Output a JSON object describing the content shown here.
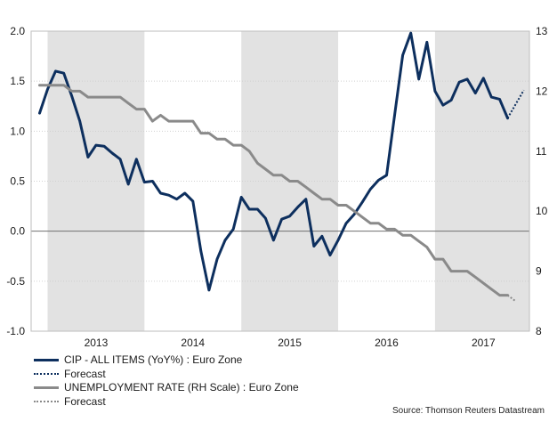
{
  "chart_data": {
    "type": "line",
    "x_labels": [
      "2013",
      "2014",
      "2015",
      "2016",
      "2017"
    ],
    "left_axis": {
      "ylim": [
        -1.0,
        2.0
      ],
      "ticks": [
        "-1.0",
        "-0.5",
        "0.0",
        "0.5",
        "1.0",
        "1.5",
        "2.0"
      ]
    },
    "right_axis": {
      "ylim": [
        8,
        13
      ],
      "ticks": [
        "8",
        "9",
        "10",
        "11",
        "12",
        "13"
      ]
    },
    "series": [
      {
        "name": "CIP - ALL ITEMS (YoY%) : Euro Zone",
        "axis": "left",
        "color": "#0d2f5e",
        "t": [
          2012.917,
          2013.0,
          2013.083,
          2013.167,
          2013.25,
          2013.333,
          2013.417,
          2013.5,
          2013.583,
          2013.667,
          2013.75,
          2013.833,
          2013.917,
          2014.0,
          2014.083,
          2014.167,
          2014.25,
          2014.333,
          2014.417,
          2014.5,
          2014.583,
          2014.667,
          2014.75,
          2014.833,
          2014.917,
          2015.0,
          2015.083,
          2015.167,
          2015.25,
          2015.333,
          2015.417,
          2015.5,
          2015.583,
          2015.667,
          2015.75,
          2015.833,
          2015.917,
          2016.0,
          2016.083,
          2016.167,
          2016.25,
          2016.333,
          2016.417,
          2016.5,
          2016.583,
          2016.667,
          2016.75,
          2016.833,
          2016.917,
          2017.0,
          2017.083,
          2017.167,
          2017.25,
          2017.333,
          2017.417,
          2017.5,
          2017.583,
          2017.667,
          2017.75
        ],
        "values": [
          1.18,
          1.42,
          1.6,
          1.58,
          1.35,
          1.1,
          0.74,
          0.86,
          0.85,
          0.78,
          0.72,
          0.47,
          0.72,
          0.49,
          0.5,
          0.38,
          0.36,
          0.32,
          0.38,
          0.3,
          -0.2,
          -0.59,
          -0.28,
          -0.09,
          0.02,
          0.34,
          0.22,
          0.22,
          0.13,
          -0.09,
          0.12,
          0.15,
          0.24,
          0.32,
          -0.15,
          -0.05,
          -0.24,
          -0.09,
          0.08,
          0.17,
          0.29,
          0.42,
          0.51,
          0.56,
          1.16,
          1.76,
          1.98,
          1.52,
          1.89,
          1.4,
          1.26,
          1.31,
          1.49,
          1.52,
          1.38,
          1.53,
          1.34,
          1.32,
          1.13
        ]
      },
      {
        "name": "Forecast",
        "axis": "left",
        "color": "#0d2f5e",
        "style": "dotted",
        "t": [
          2017.75,
          2017.917
        ],
        "values": [
          1.13,
          1.41
        ]
      },
      {
        "name": "UNEMPLOYMENT RATE (RH Scale) : Euro Zone",
        "axis": "right",
        "color": "#8a8a8a",
        "t": [
          2012.917,
          2013.0,
          2013.083,
          2013.167,
          2013.25,
          2013.333,
          2013.417,
          2013.5,
          2013.583,
          2013.667,
          2013.75,
          2013.833,
          2013.917,
          2014.0,
          2014.083,
          2014.167,
          2014.25,
          2014.333,
          2014.417,
          2014.5,
          2014.583,
          2014.667,
          2014.75,
          2014.833,
          2014.917,
          2015.0,
          2015.083,
          2015.167,
          2015.25,
          2015.333,
          2015.417,
          2015.5,
          2015.583,
          2015.667,
          2015.75,
          2015.833,
          2015.917,
          2016.0,
          2016.083,
          2016.167,
          2016.25,
          2016.333,
          2016.417,
          2016.5,
          2016.583,
          2016.667,
          2016.75,
          2016.833,
          2016.917,
          2017.0,
          2017.083,
          2017.167,
          2017.25,
          2017.333,
          2017.417,
          2017.5,
          2017.583,
          2017.667,
          2017.75
        ],
        "values": [
          12.1,
          12.1,
          12.1,
          12.1,
          12.0,
          12.0,
          11.9,
          11.9,
          11.9,
          11.9,
          11.9,
          11.8,
          11.7,
          11.7,
          11.5,
          11.6,
          11.5,
          11.5,
          11.5,
          11.5,
          11.3,
          11.3,
          11.2,
          11.2,
          11.1,
          11.1,
          11.0,
          10.8,
          10.7,
          10.6,
          10.6,
          10.5,
          10.5,
          10.4,
          10.3,
          10.2,
          10.2,
          10.1,
          10.1,
          10.0,
          9.9,
          9.8,
          9.8,
          9.7,
          9.7,
          9.6,
          9.6,
          9.5,
          9.4,
          9.2,
          9.2,
          9.0,
          9.0,
          9.0,
          8.9,
          8.8,
          8.7,
          8.6,
          8.6
        ]
      },
      {
        "name": "Forecast",
        "axis": "right",
        "color": "#8a8a8a",
        "style": "dotted",
        "t": [
          2017.75,
          2017.833
        ],
        "values": [
          8.6,
          8.5
        ]
      }
    ],
    "legend": [
      {
        "label": "CIP - ALL ITEMS (YoY%) : Euro Zone",
        "style": "solid-navy"
      },
      {
        "label": "Forecast",
        "style": "dotted-navy"
      },
      {
        "label": "UNEMPLOYMENT RATE (RH Scale) : Euro Zone",
        "style": "solid-grey"
      },
      {
        "label": "Forecast",
        "style": "dotted-grey"
      }
    ],
    "legend_position": "bottom-left",
    "grid": true,
    "shaded_bands": "alternating years",
    "source": "Source: Thomson Reuters Datastream"
  }
}
